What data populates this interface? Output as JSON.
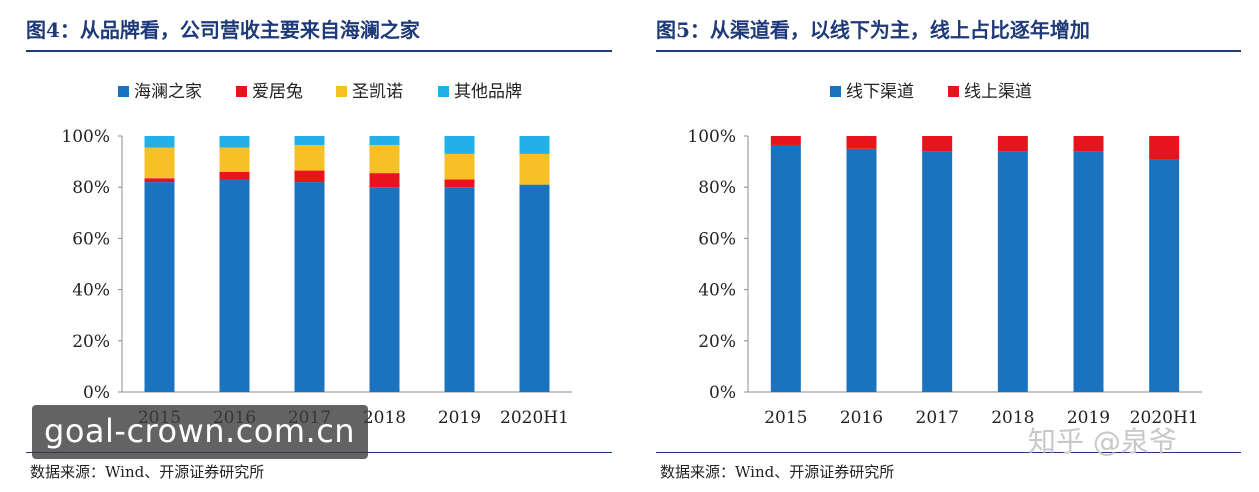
{
  "figures": [
    {
      "title": "图4：从品牌看，公司营收主要来自海澜之家",
      "source": "数据来源：Wind、开源证券研究所"
    },
    {
      "title": "图5：从渠道看，以线下为主，线上占比逐年增加",
      "source": "数据来源：Wind、开源证券研究所"
    }
  ],
  "watermark": {
    "text": "goal-crown.com.cn"
  },
  "platform_watermark": {
    "text": "知乎 @泉爷"
  },
  "chart_data": [
    {
      "type": "bar",
      "stacked": true,
      "title": "图4：从品牌看，公司营收主要来自海澜之家",
      "categories": [
        "2015",
        "2016",
        "2017",
        "2018",
        "2019",
        "2020H1"
      ],
      "series": [
        {
          "name": "海澜之家",
          "color": "#1b72bf",
          "values": [
            82,
            83,
            82,
            80,
            80,
            81
          ]
        },
        {
          "name": "爱居兔",
          "color": "#e8141b",
          "values": [
            1.5,
            3,
            4.5,
            5.5,
            3,
            0
          ]
        },
        {
          "name": "圣凯诺",
          "color": "#f7c028",
          "values": [
            12,
            9.5,
            10,
            11,
            10,
            12
          ]
        },
        {
          "name": "其他品牌",
          "color": "#21b1e8",
          "values": [
            4.5,
            4.5,
            3.5,
            3.5,
            7,
            7
          ]
        }
      ],
      "y_ticks": [
        "0%",
        "20%",
        "40%",
        "60%",
        "80%",
        "100%"
      ],
      "ylim": [
        0,
        100
      ],
      "legend_position": "top",
      "grid": false
    },
    {
      "type": "bar",
      "stacked": true,
      "title": "图5：从渠道看，以线下为主，线上占比逐年增加",
      "categories": [
        "2015",
        "2016",
        "2017",
        "2018",
        "2019",
        "2020H1"
      ],
      "series": [
        {
          "name": "线下渠道",
          "color": "#1b72bf",
          "values": [
            96.5,
            95,
            94,
            94,
            94,
            91
          ]
        },
        {
          "name": "线上渠道",
          "color": "#e8141b",
          "values": [
            3.5,
            5,
            6,
            6,
            6,
            9
          ]
        }
      ],
      "y_ticks": [
        "0%",
        "20%",
        "40%",
        "60%",
        "80%",
        "100%"
      ],
      "ylim": [
        0,
        100
      ],
      "legend_position": "top",
      "grid": false
    }
  ]
}
